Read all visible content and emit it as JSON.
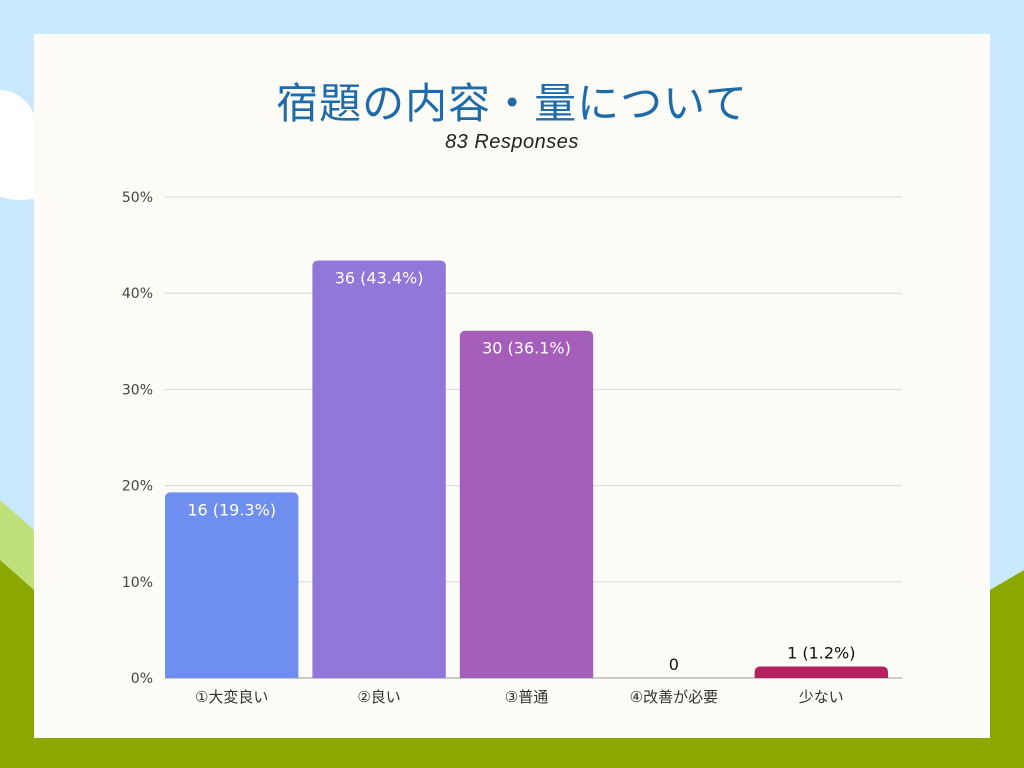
{
  "chart_data": {
    "type": "bar",
    "title": "宿題の内容・量について",
    "subtitle": "83 Responses",
    "categories": [
      "①大変良い",
      "②良い",
      "③普通",
      "④改善が必要",
      "少ない"
    ],
    "values": [
      19.3,
      43.4,
      36.1,
      0,
      1.2
    ],
    "counts": [
      16,
      36,
      30,
      0,
      1
    ],
    "data_labels": [
      "16 (19.3%)",
      "36 (43.4%)",
      "30 (36.1%)",
      "0",
      "1 (1.2%)"
    ],
    "colors": [
      "#6e8ff0",
      "#9077d8",
      "#a55fba",
      "#c44f9a",
      "#b3215f"
    ],
    "ylim": [
      0,
      50
    ],
    "y_ticks": [
      "0%",
      "10%",
      "20%",
      "30%",
      "40%",
      "50%"
    ],
    "grid": true,
    "legend": "none"
  }
}
